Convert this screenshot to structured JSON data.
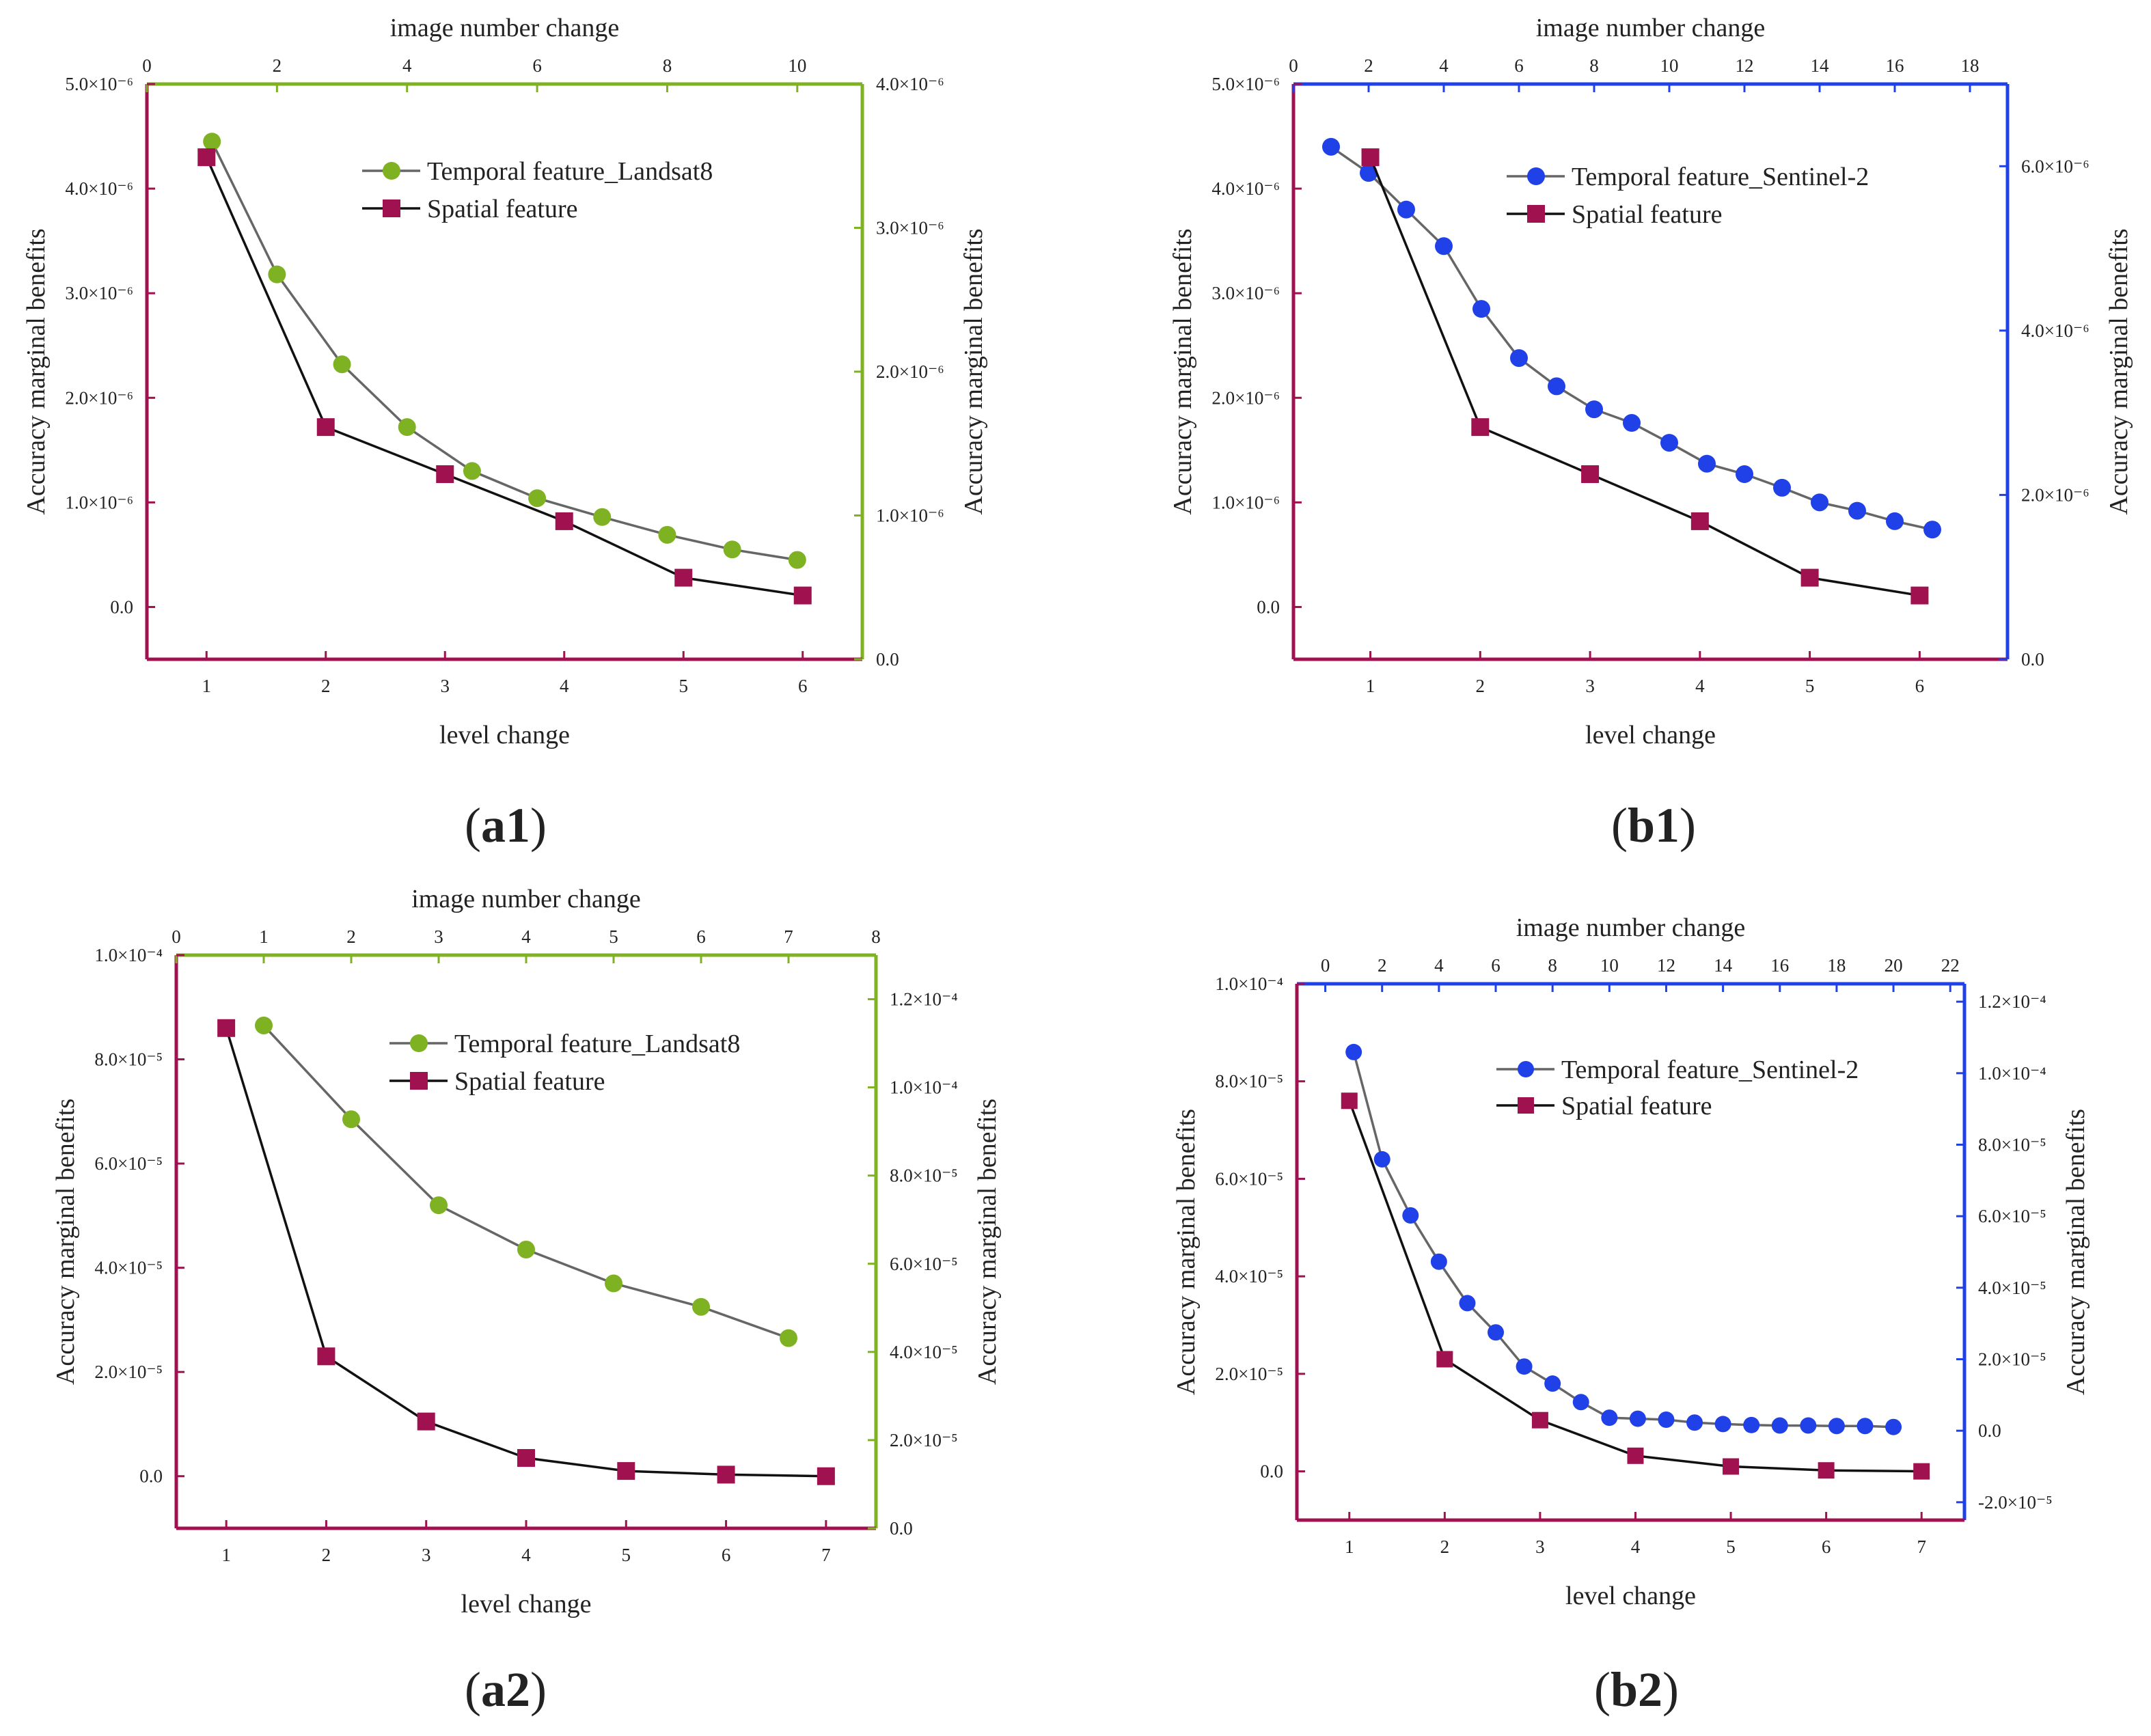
{
  "colors": {
    "spatial": "#A0114F",
    "frame_left": "#A0114F",
    "landsat": "#7EB222",
    "sentinel": "#2040E8",
    "temporal_line": "#666666",
    "spatial_line": "#111111"
  },
  "chart_data": [
    {
      "id": "a1",
      "type": "line",
      "caption": {
        "open": "(",
        "label": "a1",
        "close": ")"
      },
      "top_axis": {
        "title": "image number change",
        "range": [
          0,
          11
        ],
        "ticks": [
          0,
          2,
          4,
          6,
          8,
          10
        ],
        "tick_labels": [
          "0",
          "2",
          "4",
          "6",
          "8",
          "10"
        ]
      },
      "bottom_axis": {
        "title": "level change",
        "range": [
          0.5,
          6.5
        ],
        "ticks": [
          1,
          2,
          3,
          4,
          5,
          6
        ],
        "tick_labels": [
          "1",
          "2",
          "3",
          "4",
          "5",
          "6"
        ]
      },
      "left_axis": {
        "title": "Accuracy marginal benefits",
        "range": [
          -5e-07,
          5e-06
        ],
        "ticks": [
          0,
          1e-06,
          2e-06,
          3e-06,
          4e-06,
          5e-06
        ],
        "tick_labels": [
          "0.0",
          "1.0×10⁻⁶",
          "2.0×10⁻⁶",
          "3.0×10⁻⁶",
          "4.0×10⁻⁶",
          "5.0×10⁻⁶"
        ]
      },
      "right_axis": {
        "title": "Accuracy marginal benefits",
        "range": [
          0,
          4e-06
        ],
        "ticks": [
          0,
          1e-06,
          2e-06,
          3e-06,
          4e-06
        ],
        "tick_labels": [
          "0.0",
          "1.0×10⁻⁶",
          "2.0×10⁻⁶",
          "3.0×10⁻⁶",
          "4.0×10⁻⁶"
        ]
      },
      "series": [
        {
          "name": "Temporal feature_Landsat8",
          "axis": "top",
          "marker": "circle",
          "color_key": "landsat",
          "x": [
            1,
            2,
            3,
            4,
            5,
            6,
            7,
            8,
            9,
            10
          ],
          "y": [
            4.45e-06,
            3.18e-06,
            2.32e-06,
            1.72e-06,
            1.3e-06,
            1.04e-06,
            8.6e-07,
            6.9e-07,
            5.5e-07,
            4.5e-07
          ]
        },
        {
          "name": "Spatial feature",
          "axis": "bottom",
          "marker": "square",
          "color_key": "spatial",
          "x": [
            1,
            2,
            3,
            4,
            5,
            6
          ],
          "y": [
            4.3e-06,
            1.72e-06,
            1.27e-06,
            8.2e-07,
            2.8e-07,
            1.1e-07
          ]
        }
      ]
    },
    {
      "id": "b1",
      "type": "line",
      "caption": {
        "open": "(",
        "label": "b1",
        "close": ")"
      },
      "top_axis": {
        "title": "image number change",
        "range": [
          0,
          19
        ],
        "ticks": [
          0,
          2,
          4,
          6,
          8,
          10,
          12,
          14,
          16,
          18
        ],
        "tick_labels": [
          "0",
          "2",
          "4",
          "6",
          "8",
          "10",
          "12",
          "14",
          "16",
          "18"
        ]
      },
      "bottom_axis": {
        "title": "level change",
        "range": [
          0.3,
          6.8
        ],
        "ticks": [
          1,
          2,
          3,
          4,
          5,
          6
        ],
        "tick_labels": [
          "1",
          "2",
          "3",
          "4",
          "5",
          "6"
        ]
      },
      "left_axis": {
        "title": "Accuracy marginal benefits",
        "range": [
          -5e-07,
          5e-06
        ],
        "ticks": [
          0,
          1e-06,
          2e-06,
          3e-06,
          4e-06,
          5e-06
        ],
        "tick_labels": [
          "0.0",
          "1.0×10⁻⁶",
          "2.0×10⁻⁶",
          "3.0×10⁻⁶",
          "4.0×10⁻⁶",
          "5.0×10⁻⁶"
        ]
      },
      "right_axis": {
        "title": "Accuracy marginal benefits",
        "range": [
          0,
          7e-06
        ],
        "ticks": [
          0,
          2e-06,
          4e-06,
          6e-06
        ],
        "tick_labels": [
          "0.0",
          "2.0×10⁻⁶",
          "4.0×10⁻⁶",
          "6.0×10⁻⁶"
        ]
      },
      "series": [
        {
          "name": "Temporal feature_Sentinel-2",
          "axis": "top",
          "marker": "circle",
          "color_key": "sentinel",
          "x": [
            1,
            2,
            3,
            4,
            5,
            6,
            7,
            8,
            9,
            10,
            11,
            12,
            13,
            14,
            15,
            16,
            17
          ],
          "y": [
            4.4e-06,
            4.15e-06,
            3.8e-06,
            3.45e-06,
            2.85e-06,
            2.38e-06,
            2.11e-06,
            1.89e-06,
            1.76e-06,
            1.57e-06,
            1.37e-06,
            1.27e-06,
            1.14e-06,
            1e-06,
            9.2e-07,
            8.2e-07,
            7.4e-07
          ]
        },
        {
          "name": "Spatial feature",
          "axis": "bottom",
          "marker": "square",
          "color_key": "spatial",
          "x": [
            1,
            2,
            3,
            4,
            5,
            6
          ],
          "y": [
            4.3e-06,
            1.72e-06,
            1.27e-06,
            8.2e-07,
            2.8e-07,
            1.1e-07
          ]
        }
      ]
    },
    {
      "id": "a2",
      "type": "line",
      "caption": {
        "open": "(",
        "label": "a2",
        "close": ")"
      },
      "top_axis": {
        "title": "image number change",
        "range": [
          0,
          8
        ],
        "ticks": [
          0,
          1,
          2,
          3,
          4,
          5,
          6,
          7,
          8
        ],
        "tick_labels": [
          "0",
          "1",
          "2",
          "3",
          "4",
          "5",
          "6",
          "7",
          "8"
        ]
      },
      "bottom_axis": {
        "title": "level change",
        "range": [
          0.5,
          7.5
        ],
        "ticks": [
          1,
          2,
          3,
          4,
          5,
          6,
          7
        ],
        "tick_labels": [
          "1",
          "2",
          "3",
          "4",
          "5",
          "6",
          "7"
        ]
      },
      "left_axis": {
        "title": "Accuracy marginal benefits",
        "range": [
          -1e-05,
          0.0001
        ],
        "ticks": [
          0,
          2e-05,
          4e-05,
          6e-05,
          8e-05,
          0.0001
        ],
        "tick_labels": [
          "0.0",
          "2.0×10⁻⁵",
          "4.0×10⁻⁵",
          "6.0×10⁻⁵",
          "8.0×10⁻⁵",
          "1.0×10⁻⁴"
        ]
      },
      "right_axis": {
        "title": "Accuracy marginal benefits",
        "range": [
          0,
          0.00013
        ],
        "ticks": [
          0,
          2e-05,
          4e-05,
          6e-05,
          8e-05,
          0.0001,
          0.00012
        ],
        "tick_labels": [
          "0.0",
          "2.0×10⁻⁵",
          "4.0×10⁻⁵",
          "6.0×10⁻⁵",
          "8.0×10⁻⁵",
          "1.0×10⁻⁴",
          "1.2×10⁻⁴"
        ]
      },
      "series": [
        {
          "name": "Temporal feature_Landsat8",
          "axis": "top",
          "marker": "circle",
          "color_key": "landsat",
          "x": [
            1,
            2,
            3,
            4,
            5,
            6,
            7
          ],
          "y": [
            8.65e-05,
            6.85e-05,
            5.2e-05,
            4.35e-05,
            3.7e-05,
            3.25e-05,
            2.65e-05
          ]
        },
        {
          "name": "Spatial feature",
          "axis": "bottom",
          "marker": "square",
          "color_key": "spatial",
          "x": [
            1,
            2,
            3,
            4,
            5,
            6,
            7
          ],
          "y": [
            8.6e-05,
            2.3e-05,
            1.05e-05,
            3.5e-06,
            1e-06,
            3e-07,
            0
          ]
        }
      ]
    },
    {
      "id": "b2",
      "type": "line",
      "caption": {
        "open": "(",
        "label": "b2",
        "close": ")"
      },
      "top_axis": {
        "title": "image number change",
        "range": [
          -1,
          22.5
        ],
        "ticks": [
          0,
          2,
          4,
          6,
          8,
          10,
          12,
          14,
          16,
          18,
          20,
          22
        ],
        "tick_labels": [
          "0",
          "2",
          "4",
          "6",
          "8",
          "10",
          "12",
          "14",
          "16",
          "18",
          "20",
          "22"
        ]
      },
      "bottom_axis": {
        "title": "level change",
        "range": [
          0.45,
          7.45
        ],
        "ticks": [
          1,
          2,
          3,
          4,
          5,
          6,
          7
        ],
        "tick_labels": [
          "1",
          "2",
          "3",
          "4",
          "5",
          "6",
          "7"
        ]
      },
      "left_axis": {
        "title": "Accuracy marginal benefits",
        "range": [
          -1e-05,
          0.0001
        ],
        "ticks": [
          0,
          2e-05,
          4e-05,
          6e-05,
          8e-05,
          0.0001
        ],
        "tick_labels": [
          "0.0",
          "2.0×10⁻⁵",
          "4.0×10⁻⁵",
          "6.0×10⁻⁵",
          "8.0×10⁻⁵",
          "1.0×10⁻⁴"
        ]
      },
      "right_axis": {
        "title": "Accuracy marginal benefits",
        "range": [
          -2.5e-05,
          0.000125
        ],
        "ticks": [
          -2e-05,
          0,
          2e-05,
          4e-05,
          6e-05,
          8e-05,
          0.0001,
          0.00012
        ],
        "tick_labels": [
          "-2.0×10⁻⁵",
          "0.0",
          "2.0×10⁻⁵",
          "4.0×10⁻⁵",
          "6.0×10⁻⁵",
          "8.0×10⁻⁵",
          "1.0×10⁻⁴",
          "1.2×10⁻⁴"
        ]
      },
      "series": [
        {
          "name": "Temporal feature_Sentinel-2",
          "axis": "top",
          "marker": "circle",
          "color_key": "sentinel",
          "x": [
            1,
            2,
            3,
            4,
            5,
            6,
            7,
            8,
            9,
            10,
            11,
            12,
            13,
            14,
            15,
            16,
            17,
            18,
            19,
            20
          ],
          "y": [
            8.6e-05,
            6.4e-05,
            5.25e-05,
            4.3e-05,
            3.45e-05,
            2.85e-05,
            2.15e-05,
            1.8e-05,
            1.42e-05,
            1.1e-05,
            1.08e-05,
            1.06e-05,
            1e-05,
            9.7e-06,
            9.5e-06,
            9.4e-06,
            9.4e-06,
            9.3e-06,
            9.3e-06,
            9.1e-06
          ]
        },
        {
          "name": "Spatial feature",
          "axis": "bottom",
          "marker": "square",
          "color_key": "spatial",
          "x": [
            1,
            2,
            3,
            4,
            5,
            6,
            7
          ],
          "y": [
            7.6e-05,
            2.3e-05,
            1.05e-05,
            3.2e-06,
            1e-06,
            2e-07,
            0
          ]
        }
      ]
    }
  ]
}
